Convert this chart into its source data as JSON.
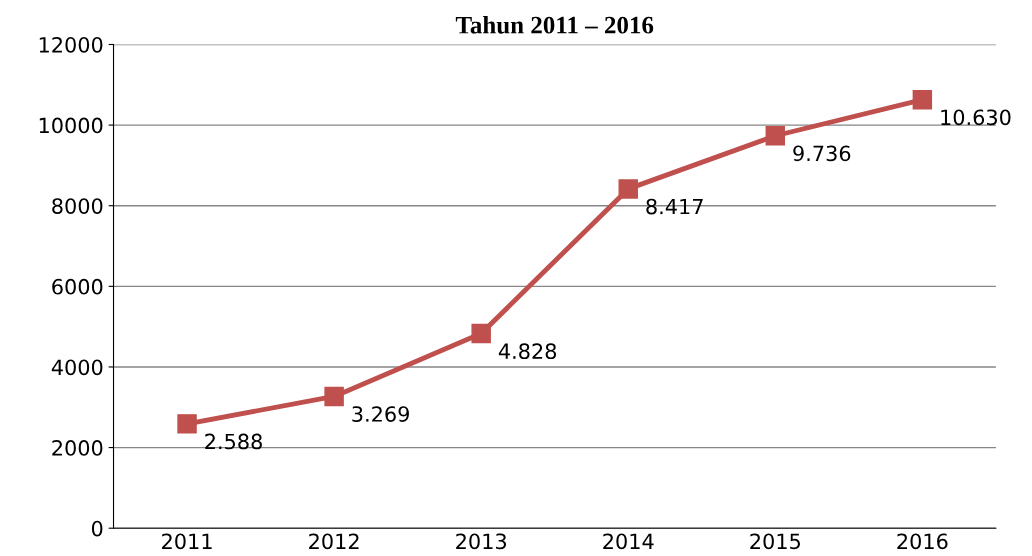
{
  "chart_data": {
    "type": "line",
    "title": "Tahun 2011 – 2016",
    "categories": [
      "2011",
      "2012",
      "2013",
      "2014",
      "2015",
      "2016"
    ],
    "series": [
      {
        "color": "#c0504d",
        "values": [
          2588,
          3269,
          4828,
          8417,
          9736,
          10630
        ],
        "value_labels": [
          "2.588",
          "3.269",
          "4.828",
          "8.417",
          "9.736",
          "10.630"
        ]
      }
    ],
    "ylim": [
      0,
      12000
    ],
    "yticks": [
      0,
      2000,
      4000,
      6000,
      8000,
      10000,
      12000
    ],
    "grid": "y",
    "marker": "square",
    "line_style": "solid",
    "legend": false
  }
}
